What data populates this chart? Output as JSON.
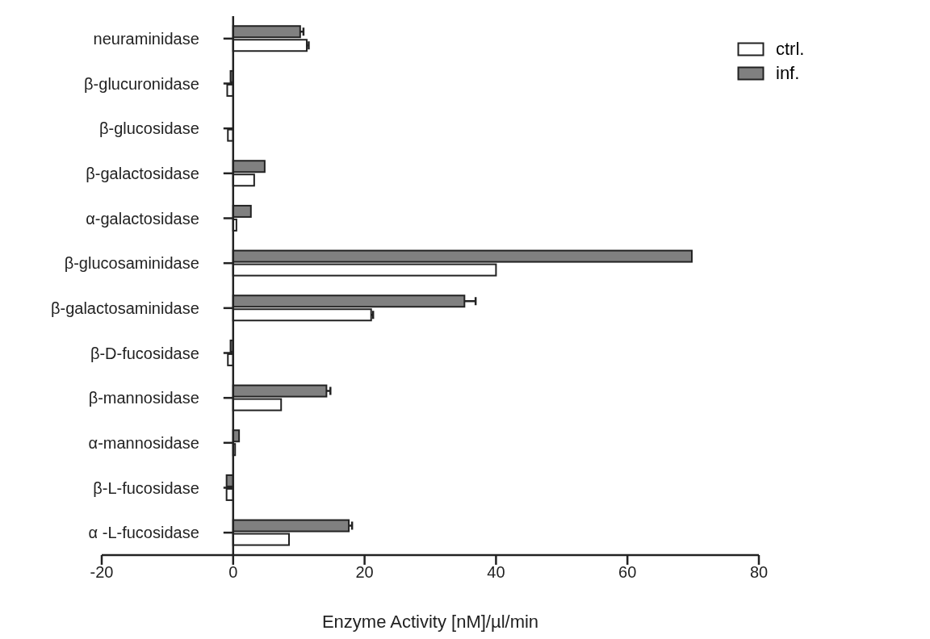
{
  "chart_data": {
    "type": "bar",
    "orientation": "horizontal",
    "xlabel": "Enzyme Activity [nM]/µl/min",
    "categories": [
      "neuraminidase",
      "β-glucuronidase",
      "β-glucosidase",
      "β-galactosidase",
      "α-galactosidase",
      "β-glucosaminidase",
      "β-galactosaminidase",
      "β-D-fucosidase",
      "β-mannosidase",
      "α-mannosidase",
      "β-L-fucosidase",
      "α -L-fucosidase"
    ],
    "series": [
      {
        "name": "inf.",
        "color": "#808080",
        "values": [
          10.2,
          -0.4,
          null,
          4.8,
          2.7,
          69.8,
          35.2,
          -0.4,
          14.2,
          0.9,
          -1,
          17.6
        ],
        "errors": [
          0.5,
          null,
          null,
          null,
          null,
          null,
          1.7,
          null,
          0.6,
          null,
          null,
          0.5
        ]
      },
      {
        "name": "ctrl.",
        "color": "#ffffff",
        "values": [
          11.2,
          -0.9,
          -0.8,
          3.2,
          0.5,
          40,
          21,
          -0.8,
          7.3,
          0.3,
          -1,
          8.5
        ],
        "errors": [
          0.3,
          null,
          null,
          null,
          null,
          null,
          0.3,
          null,
          null,
          null,
          null,
          null
        ]
      }
    ],
    "xlim": [
      -20,
      80
    ],
    "xticks": [
      -20,
      0,
      20,
      40,
      60,
      80
    ],
    "legend": "top right"
  }
}
